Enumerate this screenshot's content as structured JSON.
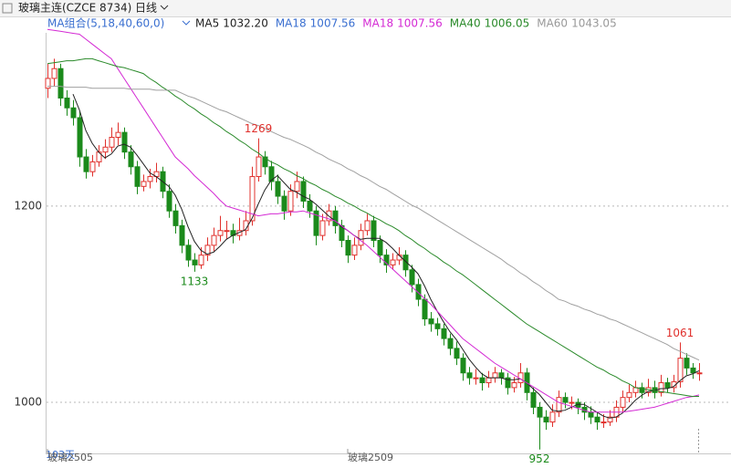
{
  "chart_data": {
    "type": "candlestick",
    "title": "玻璃主连(CZCE 8734)",
    "period": "日线",
    "indicator": "MA组合(5,18,40,60,0)",
    "legend": [
      {
        "name": "MA5",
        "label": "1032.20",
        "color": "#222222"
      },
      {
        "name": "MA18",
        "label": "1007.56",
        "color": "#3a6fd0"
      },
      {
        "name": "MA18",
        "label": "1007.56",
        "color": "#d42ad4"
      },
      {
        "name": "MA40",
        "label": "1006.05",
        "color": "#2a8a2a"
      },
      {
        "name": "MA60",
        "label": "1043.05",
        "color": "#999999"
      }
    ],
    "ylim": [
      948,
      1382
    ],
    "yticks": [
      1000,
      1200
    ],
    "grid": true,
    "up_color": "#e0302c",
    "down_color": "#1b8a1b",
    "x_labels": [
      {
        "index": 0,
        "label": "玻璃2505"
      },
      {
        "index": 47,
        "label": "玻璃2509"
      }
    ],
    "count_label": "103天",
    "ohlc": [
      [
        1320,
        1345,
        1310,
        1330
      ],
      [
        1330,
        1350,
        1322,
        1340
      ],
      [
        1340,
        1345,
        1302,
        1310
      ],
      [
        1310,
        1318,
        1292,
        1300
      ],
      [
        1300,
        1308,
        1282,
        1290
      ],
      [
        1290,
        1296,
        1240,
        1250
      ],
      [
        1250,
        1258,
        1228,
        1235
      ],
      [
        1235,
        1252,
        1230,
        1245
      ],
      [
        1245,
        1262,
        1240,
        1255
      ],
      [
        1255,
        1268,
        1248,
        1260
      ],
      [
        1260,
        1280,
        1255,
        1270
      ],
      [
        1270,
        1285,
        1262,
        1275
      ],
      [
        1275,
        1280,
        1248,
        1255
      ],
      [
        1255,
        1262,
        1232,
        1240
      ],
      [
        1240,
        1246,
        1212,
        1220
      ],
      [
        1220,
        1232,
        1215,
        1225
      ],
      [
        1225,
        1238,
        1218,
        1230
      ],
      [
        1230,
        1244,
        1224,
        1235
      ],
      [
        1235,
        1240,
        1208,
        1215
      ],
      [
        1215,
        1222,
        1188,
        1195
      ],
      [
        1195,
        1202,
        1172,
        1180
      ],
      [
        1180,
        1186,
        1152,
        1160
      ],
      [
        1160,
        1166,
        1138,
        1145
      ],
      [
        1145,
        1152,
        1133,
        1140
      ],
      [
        1140,
        1158,
        1136,
        1150
      ],
      [
        1150,
        1168,
        1144,
        1160
      ],
      [
        1160,
        1178,
        1154,
        1170
      ],
      [
        1170,
        1190,
        1164,
        1175
      ],
      [
        1175,
        1185,
        1166,
        1175
      ],
      [
        1175,
        1182,
        1162,
        1170
      ],
      [
        1170,
        1188,
        1165,
        1175
      ],
      [
        1175,
        1195,
        1170,
        1185
      ],
      [
        1185,
        1240,
        1180,
        1230
      ],
      [
        1230,
        1269,
        1225,
        1250
      ],
      [
        1250,
        1256,
        1232,
        1240
      ],
      [
        1240,
        1246,
        1216,
        1225
      ],
      [
        1225,
        1232,
        1202,
        1210
      ],
      [
        1210,
        1216,
        1186,
        1195
      ],
      [
        1195,
        1222,
        1190,
        1215
      ],
      [
        1215,
        1235,
        1208,
        1225
      ],
      [
        1225,
        1230,
        1198,
        1205
      ],
      [
        1205,
        1212,
        1188,
        1195
      ],
      [
        1195,
        1200,
        1160,
        1170
      ],
      [
        1170,
        1192,
        1165,
        1185
      ],
      [
        1185,
        1202,
        1180,
        1195
      ],
      [
        1195,
        1200,
        1172,
        1180
      ],
      [
        1180,
        1186,
        1158,
        1165
      ],
      [
        1165,
        1170,
        1142,
        1150
      ],
      [
        1150,
        1168,
        1145,
        1160
      ],
      [
        1160,
        1182,
        1155,
        1175
      ],
      [
        1175,
        1192,
        1170,
        1185
      ],
      [
        1185,
        1190,
        1158,
        1165
      ],
      [
        1165,
        1170,
        1142,
        1150
      ],
      [
        1150,
        1156,
        1132,
        1140
      ],
      [
        1140,
        1152,
        1135,
        1145
      ],
      [
        1145,
        1158,
        1140,
        1150
      ],
      [
        1150,
        1155,
        1128,
        1135
      ],
      [
        1135,
        1140,
        1112,
        1120
      ],
      [
        1120,
        1126,
        1098,
        1105
      ],
      [
        1105,
        1110,
        1078,
        1085
      ],
      [
        1085,
        1092,
        1072,
        1080
      ],
      [
        1080,
        1086,
        1068,
        1075
      ],
      [
        1075,
        1080,
        1058,
        1065
      ],
      [
        1065,
        1070,
        1048,
        1055
      ],
      [
        1055,
        1062,
        1038,
        1045
      ],
      [
        1045,
        1050,
        1022,
        1030
      ],
      [
        1030,
        1036,
        1018,
        1025
      ],
      [
        1025,
        1034,
        1018,
        1025
      ],
      [
        1025,
        1030,
        1012,
        1020
      ],
      [
        1020,
        1032,
        1015,
        1025
      ],
      [
        1025,
        1036,
        1020,
        1030
      ],
      [
        1030,
        1034,
        1018,
        1025
      ],
      [
        1025,
        1030,
        1008,
        1015
      ],
      [
        1015,
        1026,
        1010,
        1020
      ],
      [
        1020,
        1040,
        1015,
        1030
      ],
      [
        1030,
        1035,
        1002,
        1010
      ],
      [
        1010,
        1015,
        988,
        995
      ],
      [
        995,
        1000,
        952,
        985
      ],
      [
        985,
        992,
        972,
        980
      ],
      [
        980,
        998,
        975,
        990
      ],
      [
        990,
        1012,
        985,
        1005
      ],
      [
        1005,
        1010,
        994,
        1000
      ],
      [
        1000,
        1006,
        993,
        1000
      ],
      [
        1000,
        1004,
        988,
        995
      ],
      [
        995,
        1000,
        982,
        990
      ],
      [
        990,
        996,
        978,
        985
      ],
      [
        985,
        990,
        972,
        980
      ],
      [
        980,
        988,
        974,
        980
      ],
      [
        980,
        992,
        976,
        985
      ],
      [
        985,
        1002,
        980,
        995
      ],
      [
        995,
        1012,
        990,
        1005
      ],
      [
        1005,
        1018,
        1000,
        1010
      ],
      [
        1010,
        1022,
        1005,
        1015
      ],
      [
        1015,
        1020,
        1004,
        1010
      ],
      [
        1010,
        1024,
        1006,
        1015
      ],
      [
        1015,
        1022,
        1004,
        1010
      ],
      [
        1010,
        1028,
        1006,
        1020
      ],
      [
        1020,
        1025,
        1010,
        1015
      ],
      [
        1015,
        1028,
        1010,
        1021
      ],
      [
        1021,
        1061,
        1015,
        1045
      ],
      [
        1045,
        1050,
        1028,
        1035
      ],
      [
        1035,
        1040,
        1024,
        1030
      ],
      [
        1030,
        1040,
        1022,
        1030
      ]
    ],
    "annotations": [
      {
        "index": 33,
        "field": 1
      },
      {
        "index": 23,
        "field": 2
      },
      {
        "index": 77,
        "field": 2
      },
      {
        "index": 99,
        "field": 1
      }
    ],
    "series": [
      {
        "name": "MA5",
        "color": "#222222",
        "values": [
          null,
          null,
          null,
          null,
          1314,
          1298,
          1277,
          1264,
          1255,
          1249,
          1253,
          1261,
          1263,
          1260,
          1252,
          1243,
          1234,
          1230,
          1225,
          1220,
          1211,
          1197,
          1179,
          1164,
          1155,
          1151,
          1153,
          1159,
          1166,
          1170,
          1173,
          1176,
          1187,
          1202,
          1216,
          1226,
          1231,
          1224,
          1217,
          1214,
          1210,
          1207,
          1202,
          1196,
          1190,
          1185,
          1179,
          1175,
          1170,
          1166,
          1167,
          1167,
          1167,
          1163,
          1157,
          1150,
          1144,
          1138,
          1131,
          1119,
          1105,
          1093,
          1082,
          1072,
          1064,
          1054,
          1044,
          1036,
          1029,
          1025,
          1025,
          1025,
          1023,
          1023,
          1024,
          1020,
          1014,
          1008,
          1000,
          992,
          991,
          992,
          995,
          998,
          998,
          994,
          990,
          986,
          984,
          985,
          989,
          995,
          1002,
          1007,
          1011,
          1012,
          1014,
          1014,
          1016,
          1022,
          1027,
          1029,
          1032.2
        ]
      },
      {
        "name": "MA18",
        "color": "#d42ad4",
        "values": [
          1380,
          1379,
          1378,
          1377,
          1376,
          1375,
          1370,
          1365,
          1360,
          1355,
          1350,
          1340,
          1330,
          1320,
          1310,
          1300,
          1290,
          1280,
          1270,
          1260,
          1250,
          1244,
          1238,
          1231,
          1225,
          1219,
          1213,
          1206,
          1200,
          1198,
          1196,
          1194,
          1192,
          1190,
          1191,
          1192,
          1192,
          1193,
          1194,
          1194,
          1195,
          1193,
          1191,
          1189,
          1187,
          1185,
          1180,
          1175,
          1170,
          1165,
          1160,
          1154,
          1148,
          1142,
          1136,
          1130,
          1124,
          1118,
          1112,
          1106,
          1100,
          1093,
          1086,
          1079,
          1072,
          1065,
          1060,
          1055,
          1050,
          1045,
          1040,
          1036,
          1032,
          1028,
          1024,
          1020,
          1016,
          1012,
          1008,
          1004,
          1000,
          998,
          996,
          994,
          992,
          990,
          990,
          990,
          990,
          990,
          990,
          991,
          992,
          993,
          994,
          995,
          997,
          999,
          1001,
          1003,
          1005,
          1006,
          1007.56
        ]
      },
      {
        "name": "MA40",
        "color": "#2a8a2a",
        "values": [
          1345,
          1346,
          1347,
          1348,
          1348,
          1349,
          1350,
          1350,
          1348,
          1346,
          1344,
          1342,
          1341,
          1339,
          1337,
          1335,
          1330,
          1326,
          1321,
          1317,
          1312,
          1308,
          1303,
          1299,
          1294,
          1290,
          1285,
          1281,
          1276,
          1272,
          1267,
          1263,
          1258,
          1254,
          1249,
          1245,
          1242,
          1238,
          1235,
          1231,
          1228,
          1224,
          1221,
          1217,
          1214,
          1210,
          1207,
          1203,
          1200,
          1196,
          1193,
          1189,
          1186,
          1182,
          1179,
          1175,
          1170,
          1166,
          1161,
          1157,
          1152,
          1148,
          1143,
          1139,
          1134,
          1130,
          1125,
          1120,
          1115,
          1110,
          1105,
          1100,
          1095,
          1090,
          1085,
          1080,
          1076,
          1072,
          1068,
          1064,
          1060,
          1056,
          1052,
          1048,
          1044,
          1040,
          1036,
          1033,
          1029,
          1026,
          1022,
          1019,
          1015,
          1014,
          1013,
          1012,
          1011,
          1010,
          1009,
          1008,
          1007,
          1006,
          1006.05
        ]
      },
      {
        "name": "MA60",
        "color": "#a0a0a0",
        "values": [
          1322,
          1322,
          1322,
          1321,
          1321,
          1321,
          1321,
          1320,
          1320,
          1320,
          1320,
          1320,
          1320,
          1319,
          1319,
          1319,
          1319,
          1318,
          1318,
          1318,
          1318,
          1315,
          1312,
          1310,
          1307,
          1304,
          1301,
          1298,
          1296,
          1293,
          1290,
          1287,
          1284,
          1282,
          1279,
          1276,
          1273,
          1270,
          1268,
          1265,
          1262,
          1259,
          1255,
          1252,
          1248,
          1245,
          1242,
          1238,
          1235,
          1231,
          1228,
          1224,
          1220,
          1217,
          1213,
          1209,
          1205,
          1201,
          1198,
          1194,
          1190,
          1186,
          1182,
          1178,
          1174,
          1170,
          1166,
          1162,
          1158,
          1154,
          1150,
          1146,
          1141,
          1137,
          1132,
          1128,
          1123,
          1119,
          1114,
          1110,
          1105,
          1103,
          1100,
          1098,
          1095,
          1093,
          1090,
          1088,
          1085,
          1083,
          1080,
          1077,
          1074,
          1071,
          1068,
          1065,
          1062,
          1059,
          1055,
          1052,
          1049,
          1046,
          1043.05
        ]
      }
    ]
  }
}
